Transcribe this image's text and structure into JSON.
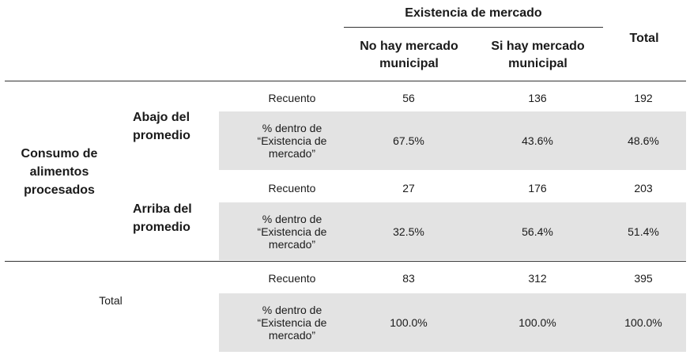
{
  "header": {
    "group_title": "Existencia de mercado",
    "col1": "No hay mercado municipal",
    "col2": "Si hay mercado municipal",
    "total": "Total"
  },
  "row_group": "Consumo de alimentos procesados",
  "rows": [
    {
      "label": "Abajo del promedio",
      "count_label": "Recuento",
      "count": [
        "56",
        "136",
        "192"
      ],
      "pct_label": "% dentro de “Existencia de mercado”",
      "pct": [
        "67.5%",
        "43.6%",
        "48.6%"
      ]
    },
    {
      "label": "Arriba del promedio",
      "count_label": "Recuento",
      "count": [
        "27",
        "176",
        "203"
      ],
      "pct_label": "% dentro de “Existencia de mercado”",
      "pct": [
        "32.5%",
        "56.4%",
        "51.4%"
      ]
    }
  ],
  "total_row": {
    "label": "Total",
    "count_label": "Recuento",
    "count": [
      "83",
      "312",
      "395"
    ],
    "pct_label": "% dentro de “Existencia de mercado”",
    "pct": [
      "100.0%",
      "100.0%",
      "100.0%"
    ]
  }
}
